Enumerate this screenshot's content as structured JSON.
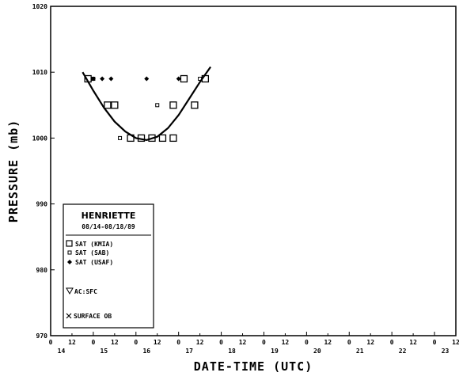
{
  "chart_data": {
    "type": "scatter",
    "ylabel": "PRESSURE (mb)",
    "xlabel": "DATE-TIME (UTC)",
    "ylim": [
      970,
      1020
    ],
    "y_ticks": [
      "1020",
      "1010",
      "1000",
      "990",
      "980",
      "970"
    ],
    "xlim": [
      0,
      228
    ],
    "x_tick_labels": [
      "0",
      "12",
      "0",
      "12",
      "0",
      "12",
      "0",
      "12",
      "0",
      "12",
      "0",
      "12",
      "0",
      "12",
      "0",
      "12",
      "0",
      "12",
      "0",
      "12"
    ],
    "x_day_labels": [
      "14",
      "15",
      "16",
      "17",
      "18",
      "19",
      "20",
      "21",
      "22",
      "23"
    ],
    "legend": {
      "title": "HENRIETTE",
      "subtitle": "08/14-08/18/89",
      "entries": [
        {
          "symbol": "square",
          "label": "SAT (KMIA)"
        },
        {
          "symbol": "small-square",
          "label": "SAT (SAB)"
        },
        {
          "symbol": "diamond",
          "label": "SAT (USAF)"
        },
        {
          "symbol": "triangle-down",
          "label": "AC:SFC"
        },
        {
          "symbol": "x",
          "label": "SURFACE OB"
        }
      ]
    },
    "series": [
      {
        "name": "SAT (KMIA)",
        "symbol": "square",
        "x": [
          21,
          32,
          36,
          45,
          51,
          57,
          63,
          69,
          69,
          75,
          81,
          87
        ],
        "y": [
          1009,
          1005,
          1005,
          1000,
          1000,
          1000,
          1000,
          1000,
          1005,
          1009,
          1005,
          1009
        ]
      },
      {
        "name": "SAT (SAB)",
        "symbol": "small-square",
        "x": [
          24,
          39,
          60,
          84
        ],
        "y": [
          1009,
          1000,
          1005,
          1009
        ]
      },
      {
        "name": "SAT (USAF)",
        "symbol": "diamond",
        "x": [
          24,
          29,
          34,
          54,
          72
        ],
        "y": [
          1009,
          1009,
          1009,
          1009,
          1009
        ]
      }
    ],
    "best_track": {
      "x": [
        18,
        24,
        30,
        36,
        42,
        48,
        54,
        60,
        66,
        72,
        78,
        84,
        90
      ],
      "y": [
        1010.0,
        1007.2,
        1004.6,
        1002.5,
        1001.0,
        1000.0,
        999.7,
        1000.2,
        1001.5,
        1003.5,
        1006.0,
        1008.5,
        1010.8
      ]
    }
  }
}
